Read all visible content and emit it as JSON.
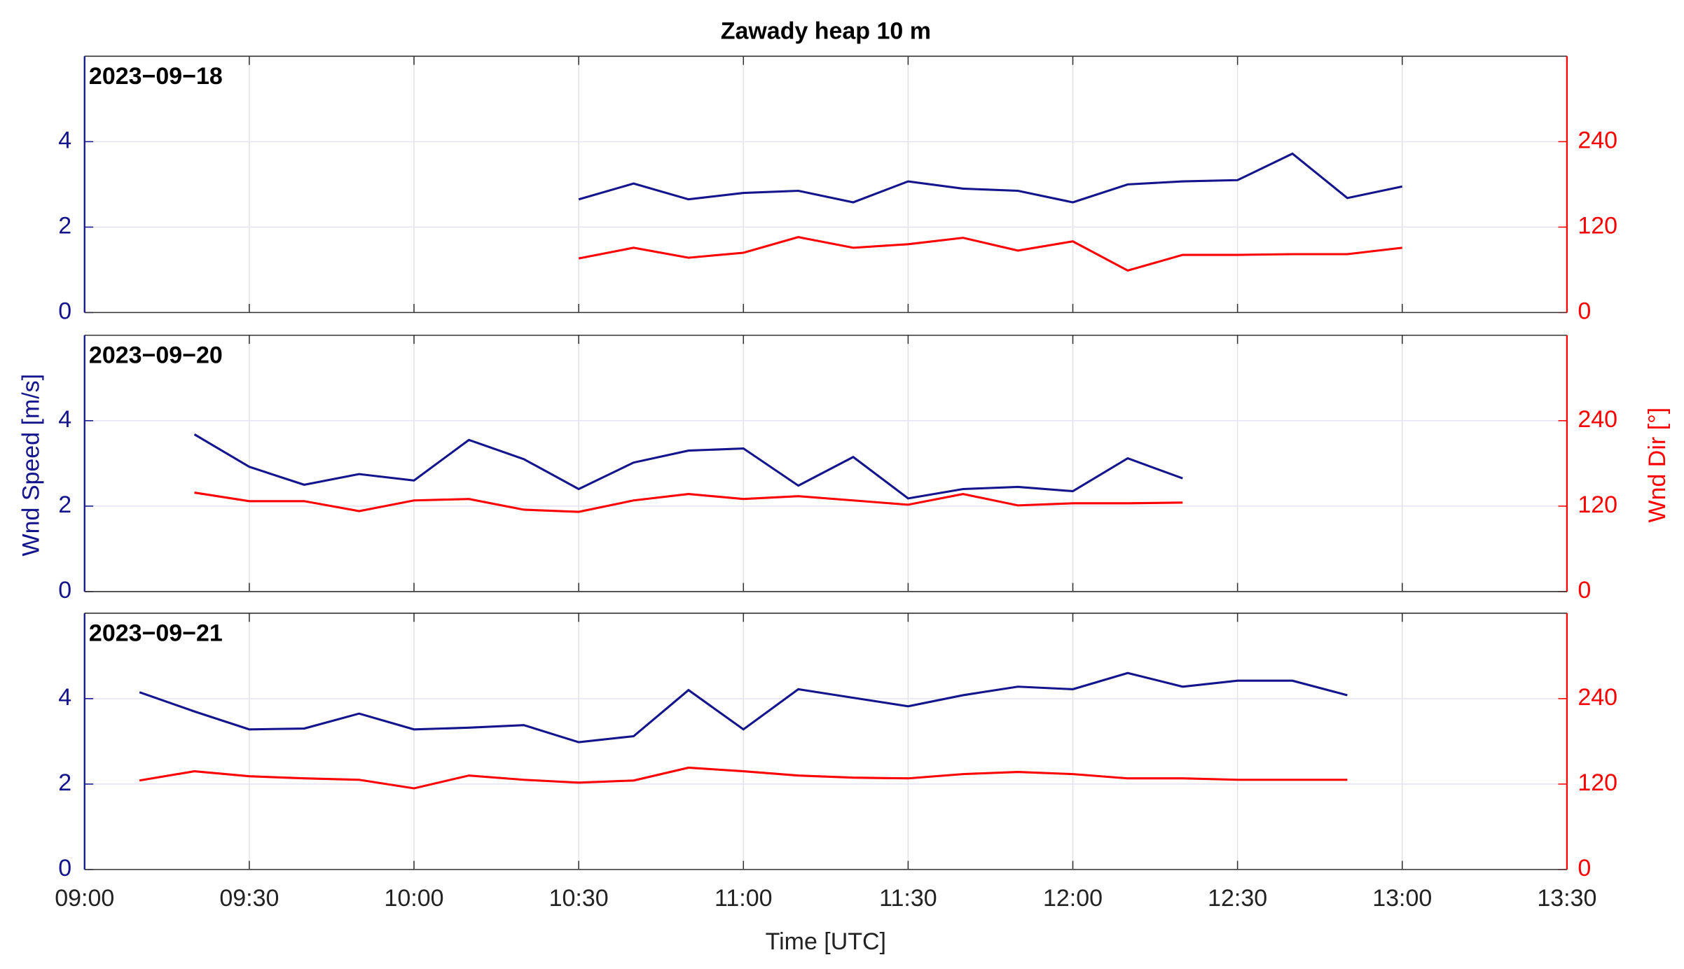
{
  "title": "Zawady heap 10 m",
  "xlabel": "Time [UTC]",
  "ylabel": "Wnd Speed [m/s]",
  "y2label": "Wnd Dir [°]",
  "chart_data": [
    {
      "type": "line",
      "subtitle": "2023−09−18",
      "grid": true,
      "xlim": [
        "09:00",
        "13:30"
      ],
      "xticks": [
        "09:00",
        "09:30",
        "10:00",
        "10:30",
        "11:00",
        "11:30",
        "12:00",
        "12:30",
        "13:00",
        "13:30"
      ],
      "ylim": [
        0,
        6
      ],
      "yticks": [
        0,
        2,
        4
      ],
      "y2lim": [
        0,
        360
      ],
      "y2ticks": [
        0,
        120,
        240
      ],
      "x": [
        "10:30",
        "10:40",
        "10:50",
        "11:00",
        "11:10",
        "11:20",
        "11:30",
        "11:40",
        "11:50",
        "12:00",
        "12:10",
        "12:20",
        "12:30",
        "12:40",
        "12:50",
        "13:00"
      ],
      "series": [
        {
          "color": "#14148c",
          "values": [
            2.65,
            3.02,
            2.65,
            2.8,
            2.85,
            2.58,
            3.07,
            2.9,
            2.85,
            2.58,
            3.0,
            3.07,
            3.1,
            3.72,
            2.68,
            2.95
          ]
        },
        {
          "color": "#ff0000",
          "axis": "y2",
          "values": [
            76,
            91,
            77,
            84,
            106,
            91,
            96,
            105,
            87,
            100,
            59,
            81,
            81,
            82,
            82,
            91
          ]
        }
      ]
    },
    {
      "type": "line",
      "subtitle": "2023−09−20",
      "grid": true,
      "xlim": [
        "09:00",
        "13:30"
      ],
      "xticks": [
        "09:00",
        "09:30",
        "10:00",
        "10:30",
        "11:00",
        "11:30",
        "12:00",
        "12:30",
        "13:00",
        "13:30"
      ],
      "ylim": [
        0,
        6
      ],
      "yticks": [
        0,
        2,
        4
      ],
      "y2lim": [
        0,
        360
      ],
      "y2ticks": [
        0,
        120,
        240
      ],
      "x": [
        "09:20",
        "09:30",
        "09:40",
        "09:50",
        "10:00",
        "10:10",
        "10:20",
        "10:30",
        "10:40",
        "10:50",
        "11:00",
        "11:10",
        "11:20",
        "11:30",
        "11:40",
        "11:50",
        "12:00",
        "12:10",
        "12:20"
      ],
      "series": [
        {
          "color": "#14148c",
          "values": [
            3.68,
            2.92,
            2.5,
            2.75,
            2.6,
            3.55,
            3.1,
            2.4,
            3.02,
            3.3,
            3.35,
            2.48,
            3.15,
            2.18,
            2.4,
            2.45,
            2.35,
            3.12,
            2.65
          ]
        },
        {
          "color": "#ff0000",
          "axis": "y2",
          "values": [
            139,
            127,
            127,
            113,
            128,
            130,
            115,
            112,
            128,
            137,
            130,
            134,
            128,
            122,
            137,
            121,
            124,
            124,
            125
          ]
        }
      ]
    },
    {
      "type": "line",
      "subtitle": "2023−09−21",
      "grid": true,
      "xlim": [
        "09:00",
        "13:30"
      ],
      "xticks": [
        "09:00",
        "09:30",
        "10:00",
        "10:30",
        "11:00",
        "11:30",
        "12:00",
        "12:30",
        "13:00",
        "13:30"
      ],
      "ylim": [
        0,
        6
      ],
      "yticks": [
        0,
        2,
        4
      ],
      "y2lim": [
        0,
        360
      ],
      "y2ticks": [
        0,
        120,
        240
      ],
      "x": [
        "09:10",
        "09:20",
        "09:30",
        "09:40",
        "09:50",
        "10:00",
        "10:10",
        "10:20",
        "10:30",
        "10:40",
        "10:50",
        "11:00",
        "11:10",
        "11:20",
        "11:30",
        "11:40",
        "11:50",
        "12:00",
        "12:10",
        "12:20",
        "12:30",
        "12:40",
        "12:50"
      ],
      "series": [
        {
          "color": "#14148c",
          "values": [
            4.15,
            3.7,
            3.28,
            3.3,
            3.65,
            3.28,
            3.32,
            3.38,
            2.98,
            3.12,
            4.2,
            3.28,
            4.22,
            4.02,
            3.82,
            4.08,
            4.28,
            4.22,
            4.6,
            4.28,
            4.42,
            4.42,
            4.08
          ]
        },
        {
          "color": "#ff0000",
          "axis": "y2",
          "values": [
            125,
            138,
            131,
            128,
            126,
            114,
            132,
            126,
            122,
            125,
            143,
            138,
            132,
            129,
            128,
            134,
            137,
            134,
            128,
            128,
            126,
            126,
            126
          ]
        }
      ]
    }
  ]
}
